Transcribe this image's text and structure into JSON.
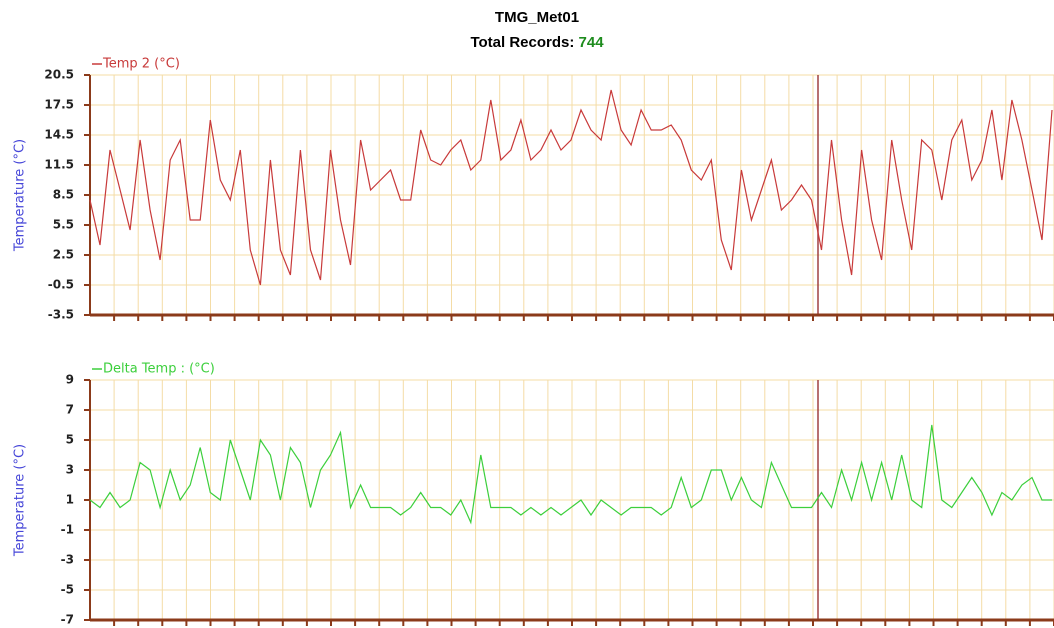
{
  "header": {
    "title": "TMG_Met01",
    "records_label": "Total Records:",
    "records": 744
  },
  "chart_data": [
    {
      "type": "line",
      "ylabel": "Temperature (°C)",
      "ylim": [
        -3.5,
        20.5
      ],
      "yticks": [
        -3.5,
        -0.5,
        2.5,
        5.5,
        8.5,
        11.5,
        14.5,
        17.5,
        20.5
      ],
      "grid": true,
      "series": [
        {
          "name": "Temp 2  (°C)",
          "color": "#c83a3a",
          "values": [
            8,
            3.5,
            13,
            9,
            5,
            14,
            7,
            2,
            12,
            14,
            6,
            6,
            16,
            10,
            8,
            13,
            3,
            -0.5,
            12,
            3,
            0.5,
            13,
            3,
            0,
            13,
            6,
            1.5,
            14,
            9,
            10,
            11,
            8,
            8,
            15,
            12,
            11.5,
            13,
            14,
            11,
            12,
            18,
            12,
            13,
            16,
            12,
            13,
            15,
            13,
            14,
            17,
            15,
            14,
            19,
            15,
            13.5,
            17,
            15,
            15,
            15.5,
            14,
            11,
            10,
            12,
            4,
            1,
            11,
            6,
            9,
            12,
            7,
            8,
            9.5,
            8,
            3,
            14,
            6,
            0.5,
            13,
            6,
            2,
            14,
            8,
            3,
            14,
            13,
            8,
            14,
            16,
            10,
            12,
            17,
            10,
            18,
            14,
            9,
            4,
            17
          ]
        }
      ]
    },
    {
      "type": "line",
      "ylabel": "Temperature (°C)",
      "ylim": [
        -7,
        9
      ],
      "yticks": [
        -7,
        -5,
        -3,
        -1,
        1,
        3,
        5,
        7,
        9
      ],
      "grid": true,
      "series": [
        {
          "name": "Delta Temp : (°C)",
          "color": "#3ccf3c",
          "values": [
            1,
            0.5,
            1.5,
            0.5,
            1,
            3.5,
            3,
            0.5,
            3,
            1,
            2,
            4.5,
            1.5,
            1,
            5,
            3,
            1,
            5,
            4,
            1,
            4.5,
            3.5,
            0.5,
            3,
            4,
            5.5,
            0.5,
            2,
            0.5,
            0.5,
            0.5,
            0,
            0.5,
            1.5,
            0.5,
            0.5,
            0,
            1,
            -0.5,
            4,
            0.5,
            0.5,
            0.5,
            0,
            0.5,
            0,
            0.5,
            0,
            0.5,
            1,
            0,
            1,
            0.5,
            0,
            0.5,
            0.5,
            0.5,
            0,
            0.5,
            2.5,
            0.5,
            1,
            3,
            3,
            1,
            2.5,
            1,
            0.5,
            3.5,
            2,
            0.5,
            0.5,
            0.5,
            1.5,
            0.5,
            3,
            1,
            3.5,
            1,
            3.5,
            1,
            4,
            1,
            0.5,
            6,
            1,
            0.5,
            1.5,
            2.5,
            1.5,
            0,
            1.5,
            1,
            2,
            2.5,
            1,
            1
          ]
        }
      ]
    }
  ]
}
